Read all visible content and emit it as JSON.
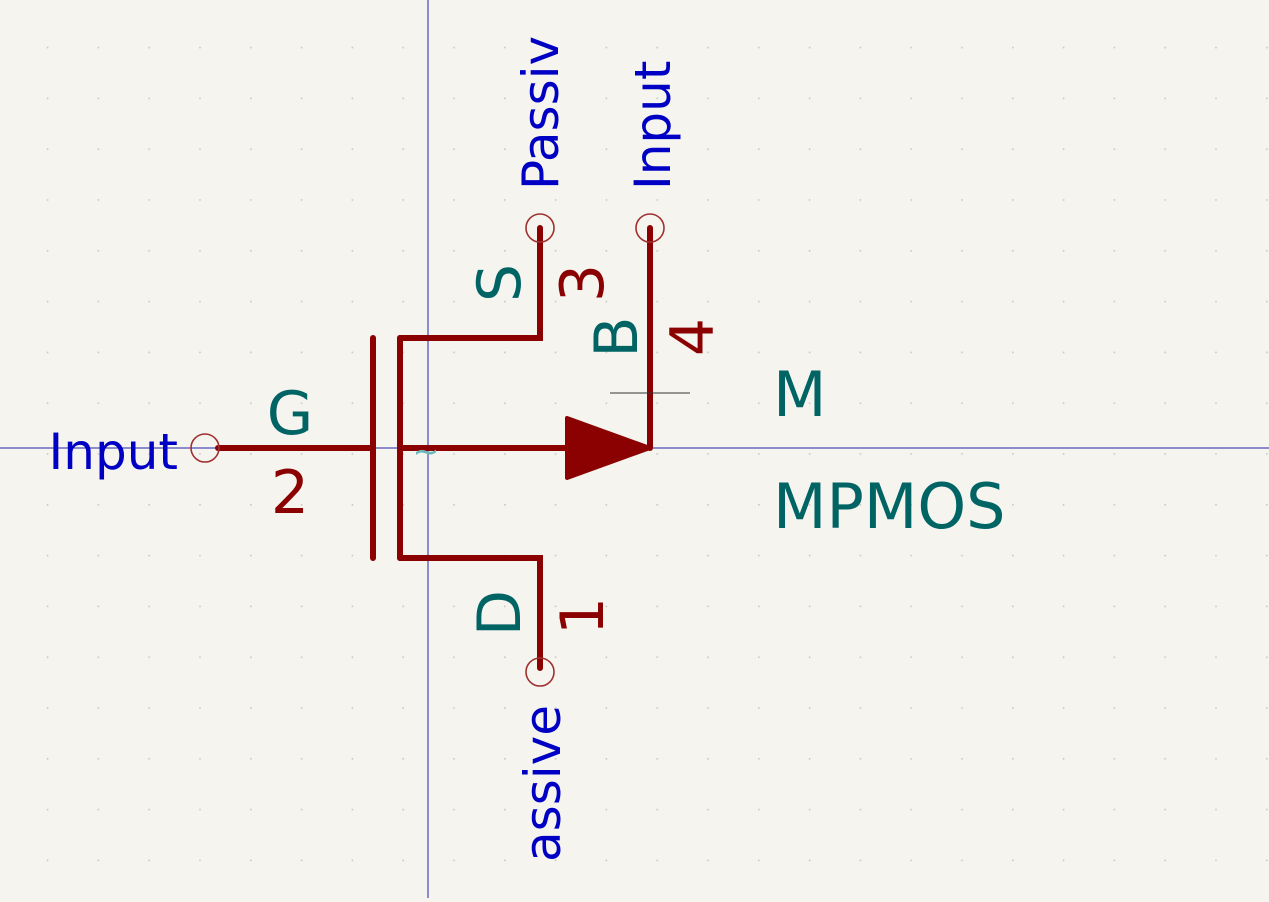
{
  "symbol": {
    "reference": "M",
    "value": "MPMOS",
    "alternate_marker": "~"
  },
  "pins": {
    "gate": {
      "name": "G",
      "number": "2",
      "type": "Input"
    },
    "source": {
      "name": "S",
      "number": "3",
      "type": "Passiv"
    },
    "bulk": {
      "name": "B",
      "number": "4",
      "type": "Input"
    },
    "drain": {
      "name": "D",
      "number": "1",
      "type": "assive"
    }
  },
  "colors": {
    "background": "#f5f4ef",
    "body": "#8b0000",
    "pin_name": "#006464",
    "pin_type": "#0000c4",
    "grid": "#c8c8c8",
    "axis": "#2222aa"
  }
}
